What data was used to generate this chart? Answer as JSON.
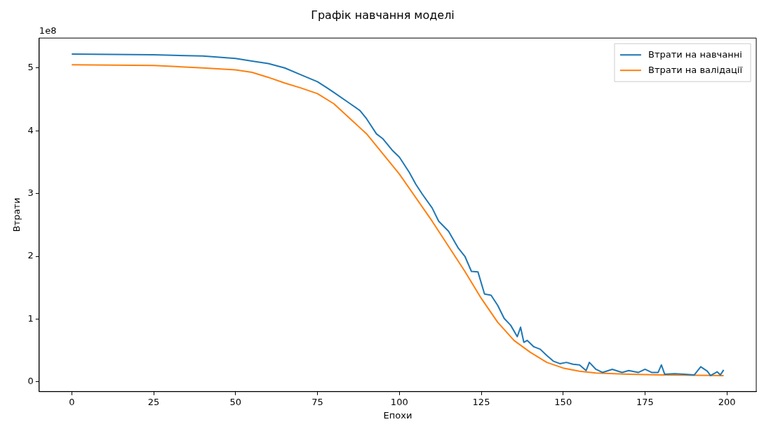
{
  "chart_data": {
    "type": "line",
    "title": "Графік навчання моделі",
    "xlabel": "Епохи",
    "ylabel": "Втрати",
    "annotations": [
      "1e8"
    ],
    "xlim": [
      -9.95,
      208.95
    ],
    "xticks": [
      0,
      25,
      50,
      75,
      100,
      125,
      150,
      175,
      200
    ],
    "ylim": [
      -0.156,
      5.476
    ],
    "yticks": [
      0,
      1,
      2,
      3,
      4,
      5
    ],
    "legend": "top right",
    "grid": false,
    "marker": "none",
    "line_style": "solid",
    "series": [
      {
        "name": "Втрати на навчанні",
        "color": "#1f77b4",
        "x": [
          0,
          25,
          40,
          50,
          55,
          60,
          65,
          70,
          75,
          78,
          80,
          85,
          88,
          90,
          93,
          95,
          98,
          100,
          103,
          105,
          107,
          110,
          112,
          115,
          118,
          120,
          122,
          124,
          126,
          128,
          130,
          132,
          134,
          136,
          137,
          138,
          139,
          141,
          143,
          145,
          147,
          149,
          151,
          153,
          155,
          157,
          158,
          160,
          162,
          165,
          168,
          170,
          173,
          175,
          177,
          179,
          180,
          181,
          184,
          187,
          190,
          192,
          194,
          195,
          197,
          198,
          199
        ],
        "values": [
          5.22,
          5.21,
          5.19,
          5.15,
          5.11,
          5.07,
          5.0,
          4.89,
          4.78,
          4.68,
          4.61,
          4.43,
          4.32,
          4.19,
          3.95,
          3.87,
          3.68,
          3.58,
          3.34,
          3.15,
          2.99,
          2.77,
          2.56,
          2.4,
          2.13,
          2.0,
          1.76,
          1.75,
          1.4,
          1.38,
          1.22,
          1.01,
          0.9,
          0.72,
          0.87,
          0.63,
          0.66,
          0.56,
          0.52,
          0.42,
          0.33,
          0.29,
          0.31,
          0.28,
          0.27,
          0.18,
          0.31,
          0.2,
          0.15,
          0.2,
          0.15,
          0.18,
          0.15,
          0.2,
          0.15,
          0.15,
          0.27,
          0.12,
          0.13,
          0.12,
          0.11,
          0.24,
          0.17,
          0.1,
          0.16,
          0.11,
          0.19
        ]
      },
      {
        "name": "Втрати на валідації",
        "color": "#ff7f0e",
        "x": [
          0,
          25,
          40,
          50,
          55,
          60,
          65,
          70,
          75,
          80,
          90,
          100,
          110,
          120,
          125,
          130,
          135,
          140,
          145,
          150,
          155,
          160,
          170,
          180,
          199
        ],
        "values": [
          5.05,
          5.04,
          5.0,
          4.97,
          4.93,
          4.85,
          4.76,
          4.68,
          4.59,
          4.43,
          3.95,
          3.31,
          2.56,
          1.76,
          1.33,
          0.95,
          0.66,
          0.47,
          0.31,
          0.22,
          0.17,
          0.14,
          0.12,
          0.11,
          0.1
        ]
      }
    ]
  }
}
